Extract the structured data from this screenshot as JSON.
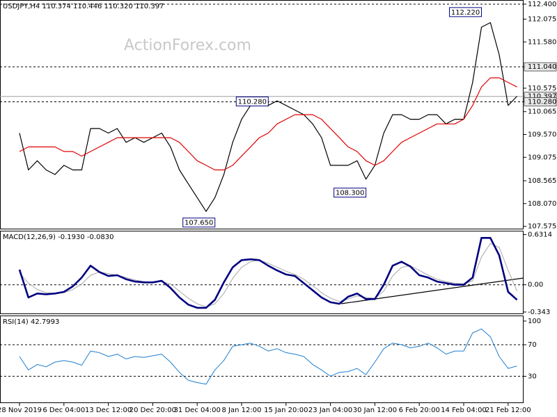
{
  "chart_data": [
    {
      "type": "line",
      "title": "USDJPY,H4  110.374 110.446 110.320 110.397",
      "watermark": "ActionForex.com",
      "ylim": [
        107.51,
        112.49
      ],
      "yticks": [
        {
          "value": 112.4,
          "label": "112.400"
        },
        {
          "value": 112.075,
          "label": "112.075"
        },
        {
          "value": 111.58,
          "label": "111.580"
        },
        {
          "value": 111.04,
          "label": "111.040",
          "box": true
        },
        {
          "value": 110.575,
          "label": "110.575"
        },
        {
          "value": 110.397,
          "label": "110.397",
          "box": true
        },
        {
          "value": 110.28,
          "label": "110.280",
          "box": true
        },
        {
          "value": 110.065,
          "label": "110.065"
        },
        {
          "value": 109.57,
          "label": "109.570"
        },
        {
          "value": 109.075,
          "label": "109.075"
        },
        {
          "value": 108.565,
          "label": "108.565"
        },
        {
          "value": 108.07,
          "label": "108.070"
        },
        {
          "value": 107.575,
          "label": "107.575"
        }
      ],
      "hlines": [
        {
          "value": 112.4,
          "style": "dashed"
        },
        {
          "value": 111.04,
          "style": "dashed"
        },
        {
          "value": 110.28,
          "style": "dashed"
        },
        {
          "value": 110.397,
          "style": "solid"
        }
      ],
      "series": [
        {
          "name": "USDJPY",
          "color": "#000000",
          "width": 1.2,
          "values": [
            109.6,
            108.8,
            109.0,
            108.8,
            108.7,
            108.9,
            108.8,
            108.8,
            109.7,
            109.7,
            109.6,
            109.7,
            109.4,
            109.5,
            109.4,
            109.5,
            109.6,
            109.3,
            108.8,
            108.5,
            108.2,
            107.9,
            108.2,
            108.7,
            109.4,
            109.9,
            110.2,
            110.3,
            110.2,
            110.3,
            110.2,
            110.1,
            110.0,
            109.8,
            109.5,
            108.9,
            108.9,
            108.9,
            109.0,
            108.6,
            108.9,
            109.6,
            110.0,
            110.0,
            109.9,
            109.9,
            110.0,
            110.0,
            109.8,
            109.9,
            109.9,
            110.7,
            111.9,
            112.0,
            111.3,
            110.2,
            110.4
          ]
        },
        {
          "name": "SMA",
          "color": "#e00000",
          "width": 1.2,
          "values": [
            109.2,
            109.3,
            109.3,
            109.3,
            109.3,
            109.2,
            109.2,
            109.1,
            109.2,
            109.3,
            109.4,
            109.5,
            109.5,
            109.5,
            109.5,
            109.5,
            109.5,
            109.5,
            109.4,
            109.2,
            109.0,
            108.9,
            108.8,
            108.8,
            108.9,
            109.1,
            109.3,
            109.5,
            109.6,
            109.8,
            109.9,
            110.0,
            110.0,
            110.0,
            109.9,
            109.7,
            109.5,
            109.3,
            109.2,
            109.0,
            108.9,
            109.0,
            109.2,
            109.4,
            109.5,
            109.6,
            109.7,
            109.8,
            109.8,
            109.8,
            109.9,
            110.2,
            110.6,
            110.8,
            110.8,
            110.7,
            110.6
          ]
        }
      ],
      "annotations": [
        {
          "label": "112.220",
          "value": 112.22,
          "x": 52
        },
        {
          "label": "110.280",
          "value": 110.28,
          "x": 28
        },
        {
          "label": "108.300",
          "value": 108.3,
          "x": 39
        },
        {
          "label": "107.650",
          "value": 107.65,
          "x": 22
        }
      ]
    },
    {
      "type": "line",
      "title": "MACD(12,26,9) -0.1930 -0.0830",
      "ylim": [
        -0.37,
        0.68
      ],
      "yticks": [
        0.6314,
        {
          "value": 0,
          "label": "0.00"
        },
        -0.343
      ],
      "hlines": [
        {
          "value": 0,
          "style": "dashed"
        }
      ],
      "series": [
        {
          "name": "Signal",
          "color": "#a8a8a8",
          "width": 1,
          "values": [
            0.15,
            0.02,
            -0.06,
            -0.1,
            -0.11,
            -0.1,
            -0.06,
            0.01,
            0.12,
            0.16,
            0.14,
            0.12,
            0.09,
            0.06,
            0.04,
            0.03,
            0.04,
            0.01,
            -0.08,
            -0.17,
            -0.24,
            -0.28,
            -0.24,
            -0.11,
            0.08,
            0.22,
            0.29,
            0.31,
            0.27,
            0.22,
            0.17,
            0.13,
            0.07,
            -0.01,
            -0.1,
            -0.17,
            -0.21,
            -0.18,
            -0.14,
            -0.16,
            -0.17,
            -0.08,
            0.11,
            0.22,
            0.24,
            0.18,
            0.12,
            0.07,
            0.04,
            0.02,
            0.01,
            0.05,
            0.35,
            0.52,
            0.47,
            0.18,
            -0.08
          ]
        },
        {
          "name": "MACD",
          "color": "#000080",
          "width": 2.6,
          "values": [
            0.19,
            -0.16,
            -0.11,
            -0.12,
            -0.11,
            -0.09,
            -0.02,
            0.09,
            0.24,
            0.16,
            0.11,
            0.12,
            0.07,
            0.04,
            0.03,
            0.03,
            0.05,
            -0.04,
            -0.16,
            -0.25,
            -0.29,
            -0.29,
            -0.19,
            0.03,
            0.22,
            0.31,
            0.32,
            0.31,
            0.24,
            0.18,
            0.13,
            0.11,
            0.02,
            -0.07,
            -0.16,
            -0.22,
            -0.24,
            -0.15,
            -0.11,
            -0.18,
            -0.18,
            0.0,
            0.24,
            0.29,
            0.23,
            0.12,
            0.09,
            0.04,
            0.02,
            0.0,
            0.0,
            0.09,
            0.59,
            0.59,
            0.37,
            -0.09,
            -0.19
          ]
        }
      ]
    },
    {
      "type": "line",
      "title": "RSI(14) 42.7993",
      "ylim": [
        -4,
        107
      ],
      "yticks": [
        100,
        70,
        30
      ],
      "hlines": [
        {
          "value": 70,
          "style": "dashed"
        },
        {
          "value": 30,
          "style": "dashed"
        }
      ],
      "categories": [
        "28 Nov 2019",
        null,
        null,
        null,
        null,
        "6 Dec 04:00",
        null,
        null,
        null,
        null,
        "13 Dec 12:00",
        null,
        null,
        null,
        null,
        "20 Dec 20:00",
        null,
        null,
        null,
        null,
        "31 Dec 04:00",
        null,
        null,
        null,
        null,
        "8 Jan 12:00",
        null,
        null,
        null,
        null,
        "15 Jan 20:00",
        null,
        null,
        null,
        null,
        "23 Jan 04:00",
        null,
        null,
        null,
        null,
        "30 Jan 12:00",
        null,
        null,
        null,
        null,
        "6 Feb 20:00",
        null,
        null,
        null,
        null,
        "14 Feb 04:00",
        null,
        null,
        null,
        null,
        "21 Feb 12:00",
        null
      ],
      "series": [
        {
          "name": "RSI",
          "color": "#1e7fd1",
          "width": 1,
          "values": [
            55,
            38,
            45,
            42,
            48,
            50,
            48,
            44,
            62,
            60,
            55,
            58,
            52,
            55,
            54,
            56,
            58,
            48,
            35,
            25,
            22,
            20,
            38,
            50,
            68,
            70,
            72,
            68,
            62,
            65,
            60,
            58,
            55,
            45,
            38,
            30,
            35,
            36,
            40,
            32,
            48,
            65,
            72,
            70,
            66,
            68,
            72,
            66,
            58,
            62,
            62,
            85,
            90,
            80,
            55,
            40,
            43
          ]
        }
      ]
    }
  ]
}
